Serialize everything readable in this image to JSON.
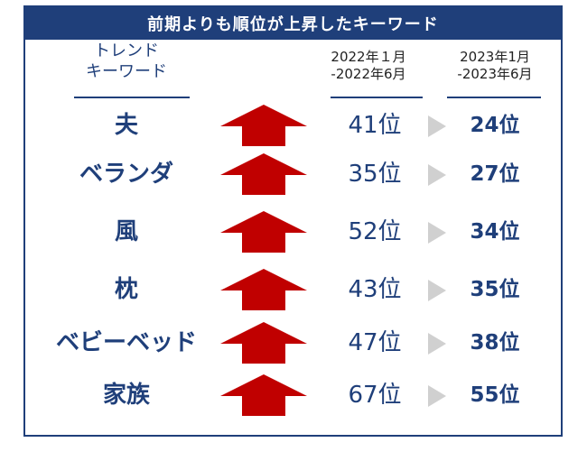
{
  "title": "前期よりも順位が上昇したキーワード",
  "headers": {
    "keyword_line1": "トレンド",
    "keyword_line2": "キーワード",
    "period1_line1": "2022年１月",
    "period1_line2": "-2022年6月",
    "period2_line1": "2023年1月",
    "period2_line2": "-2023年6月"
  },
  "colors": {
    "navy": "#1f3f7a",
    "arrow_red": "#c00000",
    "tri_gray": "#d0d0d0"
  },
  "rows": [
    {
      "keyword": "夫",
      "prev": "41位",
      "curr": "24位",
      "icon": "up-arrow-icon"
    },
    {
      "keyword": "ベランダ",
      "prev": "35位",
      "curr": "27位",
      "icon": "up-arrow-icon"
    },
    {
      "keyword": "風",
      "prev": "52位",
      "curr": "34位",
      "icon": "up-arrow-icon"
    },
    {
      "keyword": "枕",
      "prev": "43位",
      "curr": "35位",
      "icon": "up-arrow-icon"
    },
    {
      "keyword": "ベビーベッド",
      "prev": "47位",
      "curr": "38位",
      "icon": "up-arrow-icon"
    },
    {
      "keyword": "家族",
      "prev": "67位",
      "curr": "55位",
      "icon": "up-arrow-icon"
    }
  ]
}
